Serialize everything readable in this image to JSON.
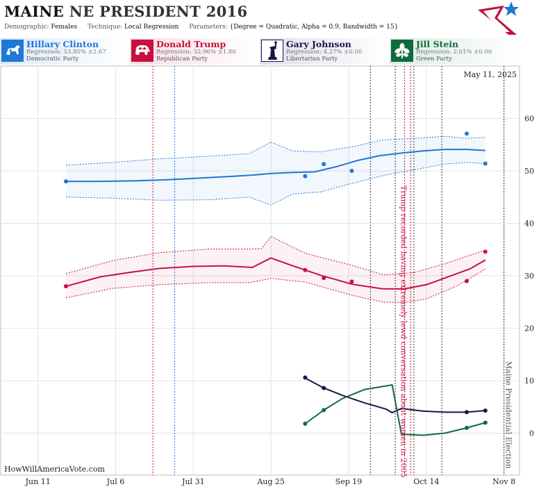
{
  "header": {
    "state": "MAINE",
    "race": "NE PRESIDENT 2016",
    "demographic_label": "Demographic:",
    "demographic_value": "Females",
    "technique_label": "Technique:",
    "technique_value": "Local Regression",
    "parameters_label": "Parameters:",
    "parameters_value": "{Degree = Quadratic, Alpha = 0.9, Bandwidth = 15}"
  },
  "candidates": [
    {
      "name": "Hillary Clinton",
      "regression": "Regression: 53.85% ±2.67",
      "party": "Democratic Party",
      "color": "#1f77d6",
      "icon": "donkey-icon"
    },
    {
      "name": "Donald Trump",
      "regression": "Regression: 32.96% ±1.80",
      "party": "Republican Party",
      "color": "#c8103e",
      "icon": "elephant-icon"
    },
    {
      "name": "Gary Johnson",
      "regression": "Regression: 4.27% ±0.00",
      "party": "Libertarian Party",
      "color": "#1a1446",
      "icon": "liberty-statue-icon"
    },
    {
      "name": "Jill Stein",
      "regression": "Regression: 2.01% ±0.00",
      "party": "Green Party",
      "color": "#0f6b3f",
      "icon": "plant-icon"
    }
  ],
  "chart_data": {
    "type": "line",
    "date_label": "May 11, 2025",
    "watermark": "HowWillAmericaVote.com",
    "x_ticks": [
      {
        "label": "Jun 11",
        "date": "2016-06-11"
      },
      {
        "label": "Jul 6",
        "date": "2016-07-06"
      },
      {
        "label": "Jul 31",
        "date": "2016-07-31"
      },
      {
        "label": "Aug 25",
        "date": "2016-08-25"
      },
      {
        "label": "Sep 19",
        "date": "2016-09-19"
      },
      {
        "label": "Oct 14",
        "date": "2016-10-14"
      },
      {
        "label": "Nov 8",
        "date": "2016-11-08"
      }
    ],
    "y_ticks": [
      0,
      10,
      20,
      30,
      40,
      50,
      60
    ],
    "ylim": [
      -8,
      70
    ],
    "xlim": [
      "2016-05-30",
      "2016-11-13"
    ],
    "grid": true,
    "events": [
      {
        "date": "2016-07-18",
        "color": "#c8103e",
        "style": "dotted"
      },
      {
        "date": "2016-07-25",
        "color": "#1f77d6",
        "style": "dotted"
      },
      {
        "date": "2016-09-26",
        "color": "#333333",
        "style": "dotted"
      },
      {
        "date": "2016-10-04",
        "color": "#333333",
        "style": "dotted"
      },
      {
        "date": "2016-10-07",
        "color": "#c8103e",
        "style": "dotted"
      },
      {
        "date": "2016-10-09",
        "color": "#c8103e",
        "style": "dotted"
      },
      {
        "date": "2016-10-10",
        "color": "#333333",
        "style": "dotted"
      },
      {
        "date": "2016-10-19",
        "color": "#333333",
        "style": "dotted"
      },
      {
        "date": "2016-11-08",
        "color": "#333333",
        "style": "dotted"
      }
    ],
    "annotations": [
      {
        "text": "Trump recorded having extremely lewd conversation about women in 2005",
        "date": "2016-10-07",
        "color": "#c8103e"
      },
      {
        "text": "Maine Presidential Election",
        "date": "2016-11-08",
        "color": "#555555"
      }
    ],
    "series": [
      {
        "name": "Hillary Clinton",
        "color": "#1f77d6",
        "trend": [
          [
            "2016-06-20",
            48.0
          ],
          [
            "2016-07-01",
            48.0
          ],
          [
            "2016-07-12",
            48.1
          ],
          [
            "2016-07-22",
            48.3
          ],
          [
            "2016-08-01",
            48.6
          ],
          [
            "2016-08-11",
            48.9
          ],
          [
            "2016-08-19",
            49.2
          ],
          [
            "2016-08-25",
            49.5
          ],
          [
            "2016-09-01",
            49.7
          ],
          [
            "2016-09-08",
            49.8
          ],
          [
            "2016-09-15",
            50.8
          ],
          [
            "2016-09-22",
            52.0
          ],
          [
            "2016-09-29",
            52.9
          ],
          [
            "2016-10-06",
            53.4
          ],
          [
            "2016-10-13",
            53.8
          ],
          [
            "2016-10-20",
            54.1
          ],
          [
            "2016-10-27",
            54.1
          ],
          [
            "2016-11-02",
            53.9
          ]
        ],
        "upper": [
          [
            "2016-06-20",
            51.1
          ],
          [
            "2016-07-05",
            51.6
          ],
          [
            "2016-07-20",
            52.3
          ],
          [
            "2016-08-05",
            52.8
          ],
          [
            "2016-08-18",
            53.3
          ],
          [
            "2016-08-25",
            55.5
          ],
          [
            "2016-09-01",
            53.8
          ],
          [
            "2016-09-10",
            53.6
          ],
          [
            "2016-09-20",
            54.6
          ],
          [
            "2016-09-30",
            55.9
          ],
          [
            "2016-10-10",
            56.2
          ],
          [
            "2016-10-20",
            56.6
          ],
          [
            "2016-10-27",
            56.2
          ],
          [
            "2016-11-02",
            56.4
          ]
        ],
        "lower": [
          [
            "2016-06-20",
            45.0
          ],
          [
            "2016-07-05",
            44.8
          ],
          [
            "2016-07-20",
            44.4
          ],
          [
            "2016-08-05",
            44.5
          ],
          [
            "2016-08-18",
            45.0
          ],
          [
            "2016-08-25",
            43.5
          ],
          [
            "2016-09-01",
            45.6
          ],
          [
            "2016-09-10",
            46.0
          ],
          [
            "2016-09-20",
            47.6
          ],
          [
            "2016-09-30",
            49.1
          ],
          [
            "2016-10-10",
            50.2
          ],
          [
            "2016-10-20",
            51.3
          ],
          [
            "2016-10-27",
            51.6
          ],
          [
            "2016-11-02",
            51.4
          ]
        ],
        "points": [
          [
            "2016-06-20",
            48.0
          ],
          [
            "2016-09-05",
            49.0
          ],
          [
            "2016-09-11",
            51.3
          ],
          [
            "2016-09-20",
            50.0
          ],
          [
            "2016-10-27",
            57.1
          ],
          [
            "2016-11-02",
            51.4
          ]
        ]
      },
      {
        "name": "Donald Trump",
        "color": "#c8103e",
        "trend": [
          [
            "2016-06-20",
            28.0
          ],
          [
            "2016-07-01",
            29.8
          ],
          [
            "2016-07-10",
            30.6
          ],
          [
            "2016-07-20",
            31.4
          ],
          [
            "2016-07-31",
            31.8
          ],
          [
            "2016-08-10",
            31.9
          ],
          [
            "2016-08-19",
            31.6
          ],
          [
            "2016-08-25",
            33.4
          ],
          [
            "2016-09-01",
            31.9
          ],
          [
            "2016-09-10",
            30.1
          ],
          [
            "2016-09-20",
            28.4
          ],
          [
            "2016-09-30",
            27.5
          ],
          [
            "2016-10-07",
            27.5
          ],
          [
            "2016-10-14",
            28.3
          ],
          [
            "2016-10-21",
            29.8
          ],
          [
            "2016-10-28",
            31.3
          ],
          [
            "2016-11-02",
            33.0
          ]
        ],
        "upper": [
          [
            "2016-06-20",
            30.4
          ],
          [
            "2016-07-05",
            32.9
          ],
          [
            "2016-07-20",
            34.4
          ],
          [
            "2016-08-05",
            35.1
          ],
          [
            "2016-08-18",
            35.1
          ],
          [
            "2016-08-22",
            35.2
          ],
          [
            "2016-08-25",
            37.5
          ],
          [
            "2016-09-05",
            34.3
          ],
          [
            "2016-09-20",
            32.0
          ],
          [
            "2016-09-30",
            30.2
          ],
          [
            "2016-10-10",
            30.6
          ],
          [
            "2016-10-20",
            32.3
          ],
          [
            "2016-11-02",
            34.9
          ]
        ],
        "lower": [
          [
            "2016-06-20",
            25.8
          ],
          [
            "2016-07-05",
            27.6
          ],
          [
            "2016-07-20",
            28.3
          ],
          [
            "2016-08-05",
            28.7
          ],
          [
            "2016-08-18",
            28.7
          ],
          [
            "2016-08-25",
            29.5
          ],
          [
            "2016-09-05",
            28.8
          ],
          [
            "2016-09-20",
            26.3
          ],
          [
            "2016-09-30",
            25.0
          ],
          [
            "2016-10-07",
            24.9
          ],
          [
            "2016-10-14",
            25.6
          ],
          [
            "2016-10-24",
            28.1
          ],
          [
            "2016-11-02",
            31.3
          ]
        ],
        "points": [
          [
            "2016-06-20",
            28.0
          ],
          [
            "2016-09-05",
            31.1
          ],
          [
            "2016-09-11",
            29.6
          ],
          [
            "2016-09-20",
            28.9
          ],
          [
            "2016-10-27",
            29.0
          ],
          [
            "2016-11-02",
            34.6
          ]
        ]
      },
      {
        "name": "Gary Johnson",
        "color": "#1a1446",
        "trend": [
          [
            "2016-09-05",
            10.5
          ],
          [
            "2016-09-11",
            8.6
          ],
          [
            "2016-09-17",
            7.2
          ],
          [
            "2016-09-24",
            5.8
          ],
          [
            "2016-10-01",
            4.6
          ],
          [
            "2016-10-03",
            3.9
          ],
          [
            "2016-10-06",
            4.7
          ],
          [
            "2016-10-13",
            4.2
          ],
          [
            "2016-10-20",
            4.0
          ],
          [
            "2016-10-27",
            4.0
          ],
          [
            "2016-11-02",
            4.3
          ]
        ],
        "points": [
          [
            "2016-09-05",
            10.6
          ],
          [
            "2016-09-11",
            8.6
          ],
          [
            "2016-10-27",
            4.0
          ],
          [
            "2016-11-02",
            4.3
          ]
        ]
      },
      {
        "name": "Jill Stein",
        "color": "#0f6b3f",
        "trend": [
          [
            "2016-09-05",
            1.8
          ],
          [
            "2016-09-11",
            4.4
          ],
          [
            "2016-09-17",
            6.6
          ],
          [
            "2016-09-24",
            8.3
          ],
          [
            "2016-10-01",
            9.0
          ],
          [
            "2016-10-03",
            9.2
          ],
          [
            "2016-10-06",
            -0.2
          ],
          [
            "2016-10-13",
            -0.4
          ],
          [
            "2016-10-20",
            0.0
          ],
          [
            "2016-10-27",
            1.0
          ],
          [
            "2016-11-02",
            2.0
          ]
        ],
        "points": [
          [
            "2016-09-05",
            1.8
          ],
          [
            "2016-09-11",
            4.4
          ],
          [
            "2016-10-27",
            1.0
          ],
          [
            "2016-11-02",
            2.0
          ]
        ]
      }
    ]
  }
}
